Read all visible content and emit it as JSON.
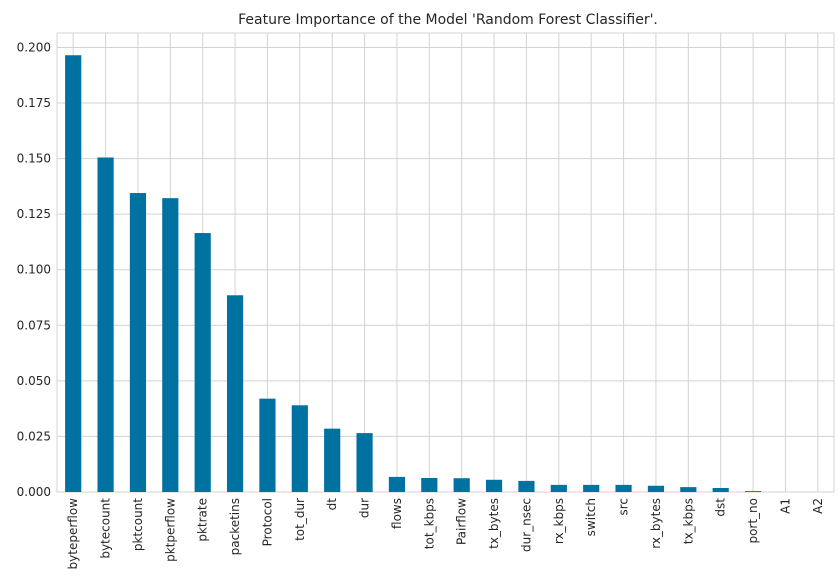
{
  "chart_data": {
    "type": "bar",
    "title": "Feature Importance of the Model 'Random Forest Classifier'.",
    "xlabel": "",
    "ylabel": "",
    "categories": [
      "byteperflow",
      "bytecount",
      "pktcount",
      "pktperflow",
      "pktrate",
      "packetins",
      "Protocol",
      "tot_dur",
      "dt",
      "dur",
      "flows",
      "tot_kbps",
      "Pairflow",
      "tx_bytes",
      "dur_nsec",
      "rx_kbps",
      "switch",
      "src",
      "rx_bytes",
      "tx_kbps",
      "dst",
      "port_no",
      "A1",
      "A2"
    ],
    "values": [
      0.1965,
      0.1505,
      0.1345,
      0.1322,
      0.1165,
      0.0885,
      0.042,
      0.039,
      0.0285,
      0.0265,
      0.0068,
      0.0063,
      0.0062,
      0.0055,
      0.005,
      0.0032,
      0.0032,
      0.0032,
      0.0028,
      0.0022,
      0.0018,
      0.0004,
      0.0,
      0.0
    ],
    "yticks": [
      "0.000",
      "0.025",
      "0.050",
      "0.075",
      "0.100",
      "0.125",
      "0.150",
      "0.175",
      "0.200"
    ],
    "ylim": [
      0,
      0.2065
    ],
    "grid": true,
    "bar_color": "#0072a2",
    "grid_color": "#d3d3d3"
  }
}
